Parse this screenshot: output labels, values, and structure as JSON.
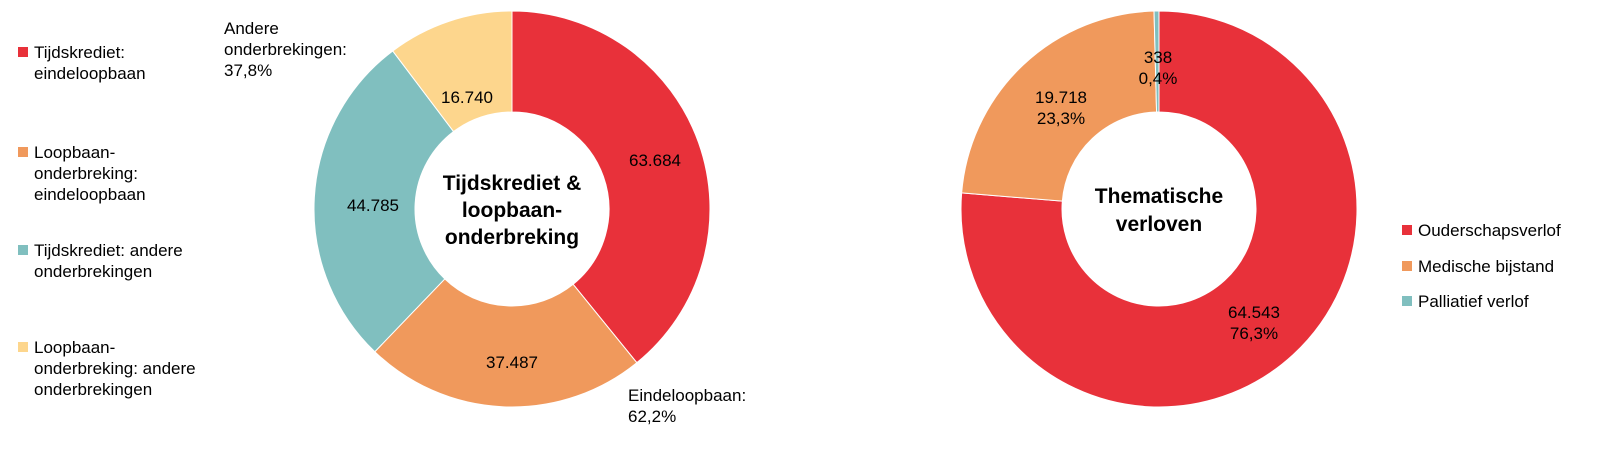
{
  "chart_data": [
    {
      "type": "pie",
      "variant": "donut",
      "title": "Tijdskrediet & loopbaan-onderbreking",
      "title_lines": [
        "Tijdskrediet &",
        "loopbaan-",
        "onderbreking"
      ],
      "slices": [
        {
          "name": "Tijdskrediet: eindeloopbaan",
          "value": 63684,
          "label": "63.684",
          "color": "#e8313a"
        },
        {
          "name": "Loopbaan-onderbreking: eindeloopbaan",
          "value": 37487,
          "label": "37.487",
          "color": "#f0995c"
        },
        {
          "name": "Tijdskrediet: andere onderbrekingen",
          "value": 44785,
          "label": "44.785",
          "color": "#80bfbf"
        },
        {
          "name": "Loopbaan-onderbreking: andere onderbrekingen",
          "value": 16740,
          "label": "16.740",
          "color": "#fdd68d"
        }
      ],
      "legend": [
        {
          "text": "Tijdskrediet:\neindeloopbaan",
          "color": "#e8313a"
        },
        {
          "text": "Loopbaan-\nonderbreking:\neindeloopbaan",
          "color": "#f0995c"
        },
        {
          "text": "Tijdskrediet: andere\nonderbrekingen",
          "color": "#80bfbf"
        },
        {
          "text": "Loopbaan-\nonderbreking: andere\nonderbrekingen",
          "color": "#fdd68d"
        }
      ],
      "legend_position": "left",
      "annotations": [
        {
          "lines": [
            "Andere",
            "onderbrekingen:",
            "37,8%"
          ]
        },
        {
          "lines": [
            "Eindeloopbaan:",
            "62,2%"
          ]
        }
      ]
    },
    {
      "type": "pie",
      "variant": "donut",
      "title": "Thematische verloven",
      "title_lines": [
        "Thematische",
        "verloven"
      ],
      "slices": [
        {
          "name": "Ouderschapsverlof",
          "value": 64543,
          "label_lines": [
            "64.543",
            "76,3%"
          ],
          "color": "#e8313a"
        },
        {
          "name": "Medische bijstand",
          "value": 19718,
          "label_lines": [
            "19.718",
            "23,3%"
          ],
          "color": "#f0995c"
        },
        {
          "name": "Palliatief verlof",
          "value": 338,
          "label_lines": [
            "338",
            "0,4%"
          ],
          "color": "#80bfbf"
        }
      ],
      "legend": [
        {
          "text": "Ouderschapsverlof",
          "color": "#e8313a"
        },
        {
          "text": "Medische bijstand",
          "color": "#f0995c"
        },
        {
          "text": "Palliatief verlof",
          "color": "#80bfbf"
        }
      ],
      "legend_position": "right"
    }
  ]
}
